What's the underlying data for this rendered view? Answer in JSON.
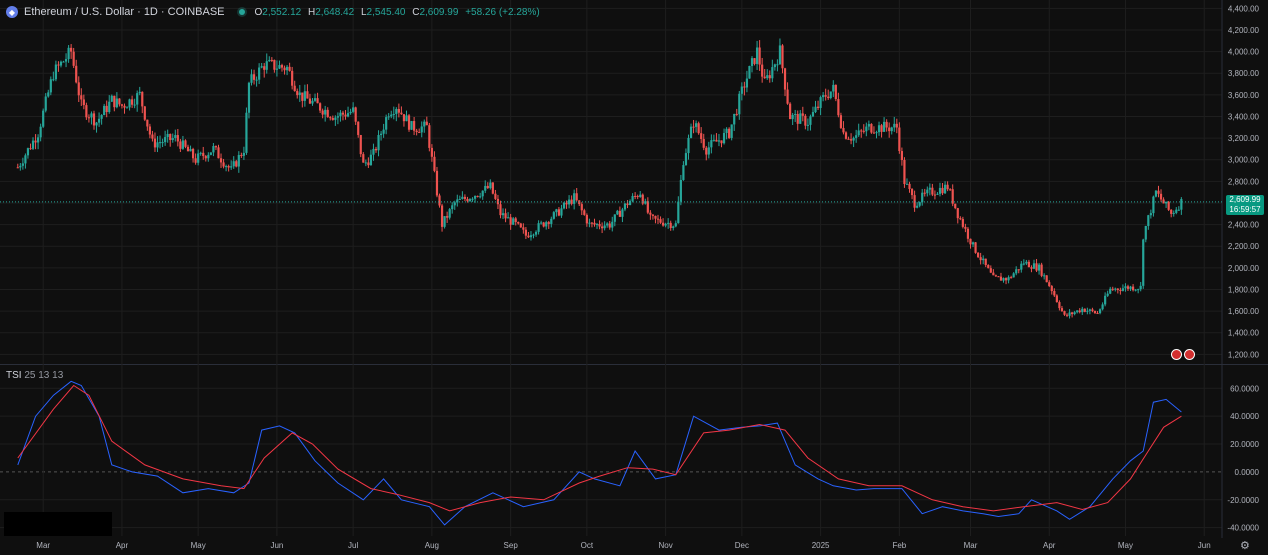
{
  "header": {
    "symbol": "Ethereum / U.S. Dollar · 1D · COINBASE",
    "o_label": "O",
    "o": "2,552.12",
    "h_label": "H",
    "h": "2,648.42",
    "l_label": "L",
    "l": "2,545.40",
    "c_label": "C",
    "c": "2,609.99",
    "change": "+58.26 (+2.28%)"
  },
  "price_tag": {
    "price": "2,609.99",
    "countdown": "16:59:57"
  },
  "indicator": {
    "name": "TSI",
    "params": "25 13 13"
  },
  "colors": {
    "up": "#26a69a",
    "down": "#ef5350",
    "tsi": "#2962ff",
    "signal": "#f23645",
    "bg": "#0f0f0f",
    "grid": "#1e1e1e"
  },
  "chart_data": [
    {
      "type": "candlestick",
      "title": "Ethereum / U.S. Dollar · 1D · COINBASE",
      "y_ticks": [
        1200,
        1400,
        1600,
        1800,
        2000,
        2200,
        2400,
        2600,
        2800,
        3000,
        3200,
        3400,
        3600,
        3800,
        4000,
        4200,
        4400
      ],
      "y_tick_labels": [
        "1,200.00",
        "1,400.00",
        "1,600.00",
        "1,800.00",
        "2,000.00",
        "2,200.00",
        "2,400.00",
        "2,600.00",
        "2,800.00",
        "3,000.00",
        "3,200.00",
        "3,400.00",
        "3,600.00",
        "3,800.00",
        "4,000.00",
        "4,200.00",
        "4,400.00"
      ],
      "ylim": [
        1120,
        4440
      ],
      "x_labels": [
        "Mar",
        "Apr",
        "May",
        "Jun",
        "Jul",
        "Aug",
        "Sep",
        "Oct",
        "Nov",
        "Dec",
        "2025",
        "Feb",
        "Mar",
        "Apr",
        "May",
        "Jun"
      ],
      "close_path": [
        [
          "2024-02-20",
          2930
        ],
        [
          "2024-02-28",
          3250
        ],
        [
          "2024-03-05",
          3800
        ],
        [
          "2024-03-12",
          4000
        ],
        [
          "2024-03-16",
          3500
        ],
        [
          "2024-03-22",
          3350
        ],
        [
          "2024-03-28",
          3550
        ],
        [
          "2024-04-01",
          3500
        ],
        [
          "2024-04-08",
          3600
        ],
        [
          "2024-04-13",
          3150
        ],
        [
          "2024-04-22",
          3200
        ],
        [
          "2024-04-30",
          3000
        ],
        [
          "2024-05-07",
          3100
        ],
        [
          "2024-05-14",
          2900
        ],
        [
          "2024-05-19",
          3100
        ],
        [
          "2024-05-21",
          3700
        ],
        [
          "2024-05-27",
          3880
        ],
        [
          "2024-06-05",
          3850
        ],
        [
          "2024-06-10",
          3600
        ],
        [
          "2024-06-17",
          3500
        ],
        [
          "2024-06-24",
          3400
        ],
        [
          "2024-07-01",
          3450
        ],
        [
          "2024-07-05",
          2950
        ],
        [
          "2024-07-09",
          3050
        ],
        [
          "2024-07-15",
          3450
        ],
        [
          "2024-07-18",
          3500
        ],
        [
          "2024-07-24",
          3300
        ],
        [
          "2024-07-30",
          3300
        ],
        [
          "2024-08-05",
          2400
        ],
        [
          "2024-08-10",
          2600
        ],
        [
          "2024-08-20",
          2700
        ],
        [
          "2024-08-24",
          2750
        ],
        [
          "2024-08-28",
          2500
        ],
        [
          "2024-09-03",
          2400
        ],
        [
          "2024-09-07",
          2300
        ],
        [
          "2024-09-12",
          2380
        ],
        [
          "2024-09-19",
          2500
        ],
        [
          "2024-09-26",
          2650
        ],
        [
          "2024-10-02",
          2400
        ],
        [
          "2024-10-10",
          2400
        ],
        [
          "2024-10-17",
          2600
        ],
        [
          "2024-10-22",
          2700
        ],
        [
          "2024-10-26",
          2450
        ],
        [
          "2024-11-05",
          2400
        ],
        [
          "2024-11-08",
          3000
        ],
        [
          "2024-11-12",
          3350
        ],
        [
          "2024-11-17",
          3100
        ],
        [
          "2024-11-26",
          3250
        ],
        [
          "2024-12-02",
          3700
        ],
        [
          "2024-12-07",
          4000
        ],
        [
          "2024-12-10",
          3700
        ],
        [
          "2024-12-16",
          4000
        ],
        [
          "2024-12-20",
          3400
        ],
        [
          "2024-12-27",
          3350
        ],
        [
          "2025-01-03",
          3600
        ],
        [
          "2025-01-06",
          3650
        ],
        [
          "2025-01-10",
          3250
        ],
        [
          "2025-01-14",
          3200
        ],
        [
          "2025-01-20",
          3300
        ],
        [
          "2025-01-25",
          3300
        ],
        [
          "2025-01-31",
          3300
        ],
        [
          "2025-02-03",
          2800
        ],
        [
          "2025-02-07",
          2600
        ],
        [
          "2025-02-13",
          2700
        ],
        [
          "2025-02-20",
          2750
        ],
        [
          "2025-02-24",
          2500
        ],
        [
          "2025-03-02",
          2200
        ],
        [
          "2025-03-10",
          1900
        ],
        [
          "2025-03-16",
          1900
        ],
        [
          "2025-03-22",
          2050
        ],
        [
          "2025-03-28",
          2000
        ],
        [
          "2025-04-02",
          1800
        ],
        [
          "2025-04-07",
          1550
        ],
        [
          "2025-04-14",
          1620
        ],
        [
          "2025-04-20",
          1580
        ],
        [
          "2025-04-25",
          1800
        ],
        [
          "2025-05-02",
          1820
        ],
        [
          "2025-05-07",
          1820
        ],
        [
          "2025-05-08",
          2300
        ],
        [
          "2025-05-13",
          2700
        ],
        [
          "2025-05-19",
          2500
        ],
        [
          "2025-05-23",
          2610
        ]
      ],
      "last_price": 2609.99
    },
    {
      "type": "line",
      "title": "TSI 25 13 13",
      "y_ticks": [
        -40,
        -20,
        0,
        20,
        40,
        60
      ],
      "y_tick_labels": [
        "-40.0000",
        "-20.0000",
        "0.0000",
        "20.0000",
        "40.0000",
        "60.0000"
      ],
      "ylim": [
        -46,
        76
      ],
      "series": [
        {
          "name": "TSI",
          "values": [
            [
              "2024-02-20",
              5
            ],
            [
              "2024-02-27",
              40
            ],
            [
              "2024-03-05",
              55
            ],
            [
              "2024-03-12",
              65
            ],
            [
              "2024-03-16",
              62
            ],
            [
              "2024-03-23",
              40
            ],
            [
              "2024-03-28",
              5
            ],
            [
              "2024-04-05",
              0
            ],
            [
              "2024-04-15",
              -3
            ],
            [
              "2024-04-25",
              -15
            ],
            [
              "2024-05-05",
              -12
            ],
            [
              "2024-05-15",
              -15
            ],
            [
              "2024-05-21",
              -8
            ],
            [
              "2024-05-26",
              30
            ],
            [
              "2024-06-02",
              33
            ],
            [
              "2024-06-08",
              28
            ],
            [
              "2024-06-16",
              8
            ],
            [
              "2024-06-25",
              -8
            ],
            [
              "2024-07-05",
              -20
            ],
            [
              "2024-07-13",
              -5
            ],
            [
              "2024-07-20",
              -20
            ],
            [
              "2024-07-31",
              -25
            ],
            [
              "2024-08-06",
              -38
            ],
            [
              "2024-08-14",
              -25
            ],
            [
              "2024-08-25",
              -15
            ],
            [
              "2024-09-06",
              -25
            ],
            [
              "2024-09-18",
              -20
            ],
            [
              "2024-09-28",
              0
            ],
            [
              "2024-10-04",
              -5
            ],
            [
              "2024-10-14",
              -10
            ],
            [
              "2024-10-20",
              15
            ],
            [
              "2024-10-28",
              -5
            ],
            [
              "2024-11-05",
              -2
            ],
            [
              "2024-11-12",
              40
            ],
            [
              "2024-11-22",
              30
            ],
            [
              "2024-12-01",
              32
            ],
            [
              "2024-12-08",
              33
            ],
            [
              "2024-12-15",
              35
            ],
            [
              "2024-12-22",
              5
            ],
            [
              "2024-12-31",
              -5
            ],
            [
              "2025-01-06",
              -10
            ],
            [
              "2025-01-15",
              -13
            ],
            [
              "2025-01-22",
              -12
            ],
            [
              "2025-02-02",
              -12
            ],
            [
              "2025-02-10",
              -30
            ],
            [
              "2025-02-18",
              -25
            ],
            [
              "2025-02-26",
              -28
            ],
            [
              "2025-03-06",
              -30
            ],
            [
              "2025-03-12",
              -32
            ],
            [
              "2025-03-20",
              -30
            ],
            [
              "2025-03-25",
              -20
            ],
            [
              "2025-04-04",
              -28
            ],
            [
              "2025-04-09",
              -34
            ],
            [
              "2025-04-17",
              -25
            ],
            [
              "2025-04-26",
              -5
            ],
            [
              "2025-05-03",
              8
            ],
            [
              "2025-05-08",
              15
            ],
            [
              "2025-05-12",
              50
            ],
            [
              "2025-05-17",
              52
            ],
            [
              "2025-05-23",
              43
            ]
          ]
        },
        {
          "name": "Signal",
          "values": [
            [
              "2024-02-20",
              10
            ],
            [
              "2024-03-05",
              45
            ],
            [
              "2024-03-13",
              62
            ],
            [
              "2024-03-19",
              55
            ],
            [
              "2024-03-28",
              22
            ],
            [
              "2024-04-10",
              5
            ],
            [
              "2024-04-25",
              -5
            ],
            [
              "2024-05-10",
              -10
            ],
            [
              "2024-05-19",
              -12
            ],
            [
              "2024-05-27",
              10
            ],
            [
              "2024-06-07",
              28
            ],
            [
              "2024-06-15",
              20
            ],
            [
              "2024-06-25",
              2
            ],
            [
              "2024-07-08",
              -12
            ],
            [
              "2024-07-18",
              -16
            ],
            [
              "2024-07-31",
              -22
            ],
            [
              "2024-08-08",
              -28
            ],
            [
              "2024-08-20",
              -22
            ],
            [
              "2024-09-01",
              -18
            ],
            [
              "2024-09-14",
              -20
            ],
            [
              "2024-09-28",
              -8
            ],
            [
              "2024-10-06",
              -3
            ],
            [
              "2024-10-17",
              3
            ],
            [
              "2024-10-27",
              2
            ],
            [
              "2024-11-05",
              -2
            ],
            [
              "2024-11-16",
              28
            ],
            [
              "2024-11-26",
              30
            ],
            [
              "2024-12-08",
              34
            ],
            [
              "2024-12-18",
              30
            ],
            [
              "2024-12-27",
              10
            ],
            [
              "2025-01-08",
              -5
            ],
            [
              "2025-01-20",
              -10
            ],
            [
              "2025-02-02",
              -10
            ],
            [
              "2025-02-14",
              -20
            ],
            [
              "2025-02-26",
              -25
            ],
            [
              "2025-03-10",
              -28
            ],
            [
              "2025-03-22",
              -25
            ],
            [
              "2025-04-04",
              -22
            ],
            [
              "2025-04-14",
              -27
            ],
            [
              "2025-04-24",
              -22
            ],
            [
              "2025-05-03",
              -5
            ],
            [
              "2025-05-10",
              15
            ],
            [
              "2025-05-16",
              32
            ],
            [
              "2025-05-23",
              40
            ]
          ]
        }
      ]
    }
  ]
}
